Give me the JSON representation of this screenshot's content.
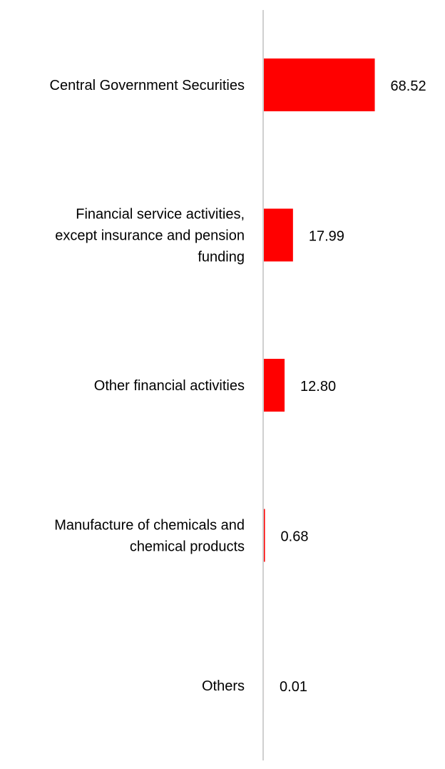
{
  "chart_data": {
    "type": "bar",
    "orientation": "horizontal",
    "categories": [
      [
        "Central Government Securities"
      ],
      [
        "Financial service activities,",
        "except insurance and pension",
        "funding"
      ],
      [
        "Other financial activities"
      ],
      [
        "Manufacture of chemicals and",
        "chemical products"
      ],
      [
        "Others"
      ]
    ],
    "values": [
      68.52,
      17.99,
      12.8,
      0.68,
      0.01
    ],
    "value_labels": [
      "68.52",
      "17.99",
      "12.80",
      "0.68",
      "0.01"
    ],
    "title": "",
    "xlabel": "",
    "ylabel": "",
    "xlim": [
      0,
      100
    ],
    "grid": false,
    "legend": "none",
    "colors": {
      "bar": "#ff0000",
      "axis": "#d0d0d0",
      "text": "#000000"
    }
  }
}
